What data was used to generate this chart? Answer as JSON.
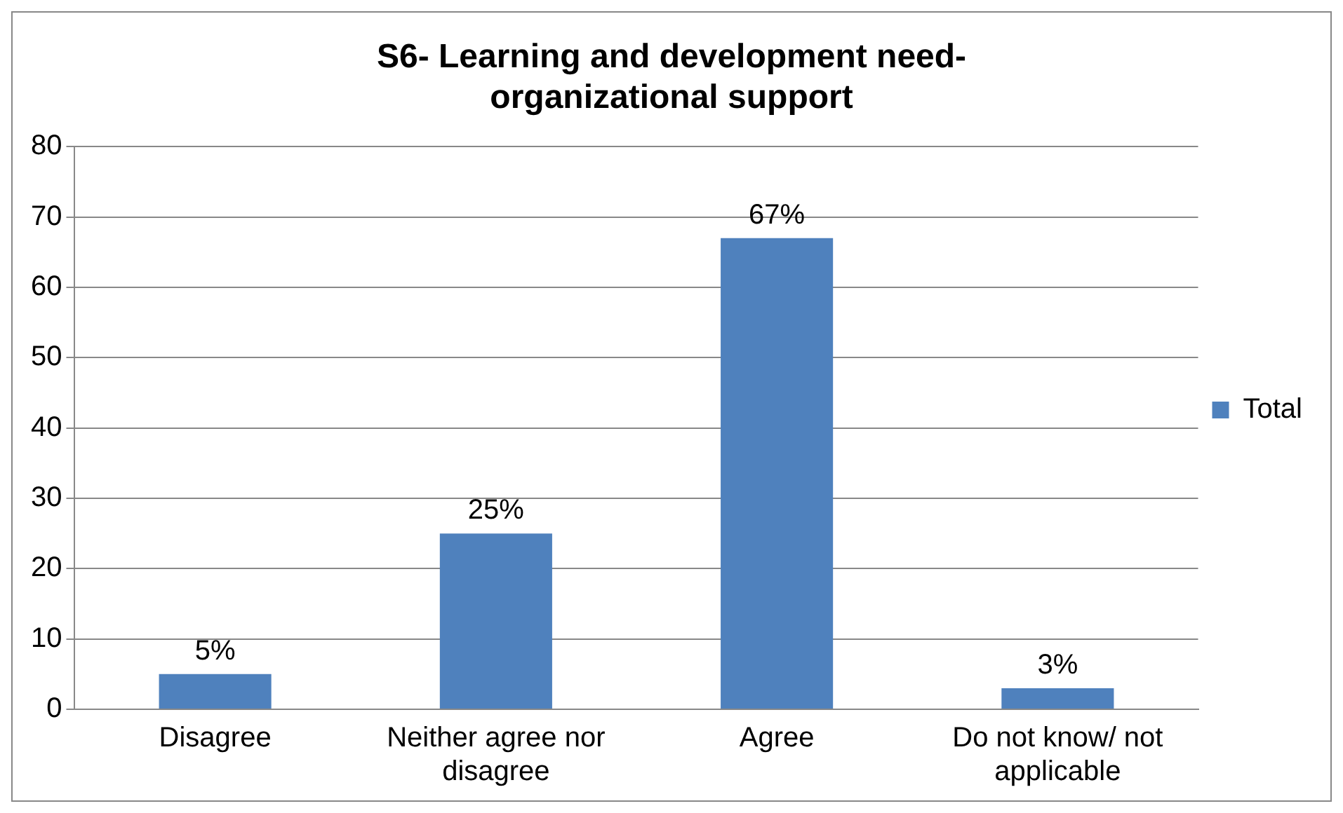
{
  "chart_data": {
    "type": "bar",
    "title": "S6- Learning and development need- organizational support",
    "categories": [
      "Disagree",
      "Neither agree nor disagree",
      "Agree",
      "Do not know/ not applicable"
    ],
    "series": [
      {
        "name": "Total",
        "color": "#4f81bd",
        "values": [
          5,
          25,
          67,
          3
        ],
        "value_labels": [
          "5%",
          "25%",
          "67%",
          "3%"
        ]
      }
    ],
    "ylim": [
      0,
      80
    ],
    "yticks": [
      0,
      10,
      20,
      30,
      40,
      50,
      60,
      70,
      80
    ],
    "grid": "y",
    "legend": "right"
  }
}
